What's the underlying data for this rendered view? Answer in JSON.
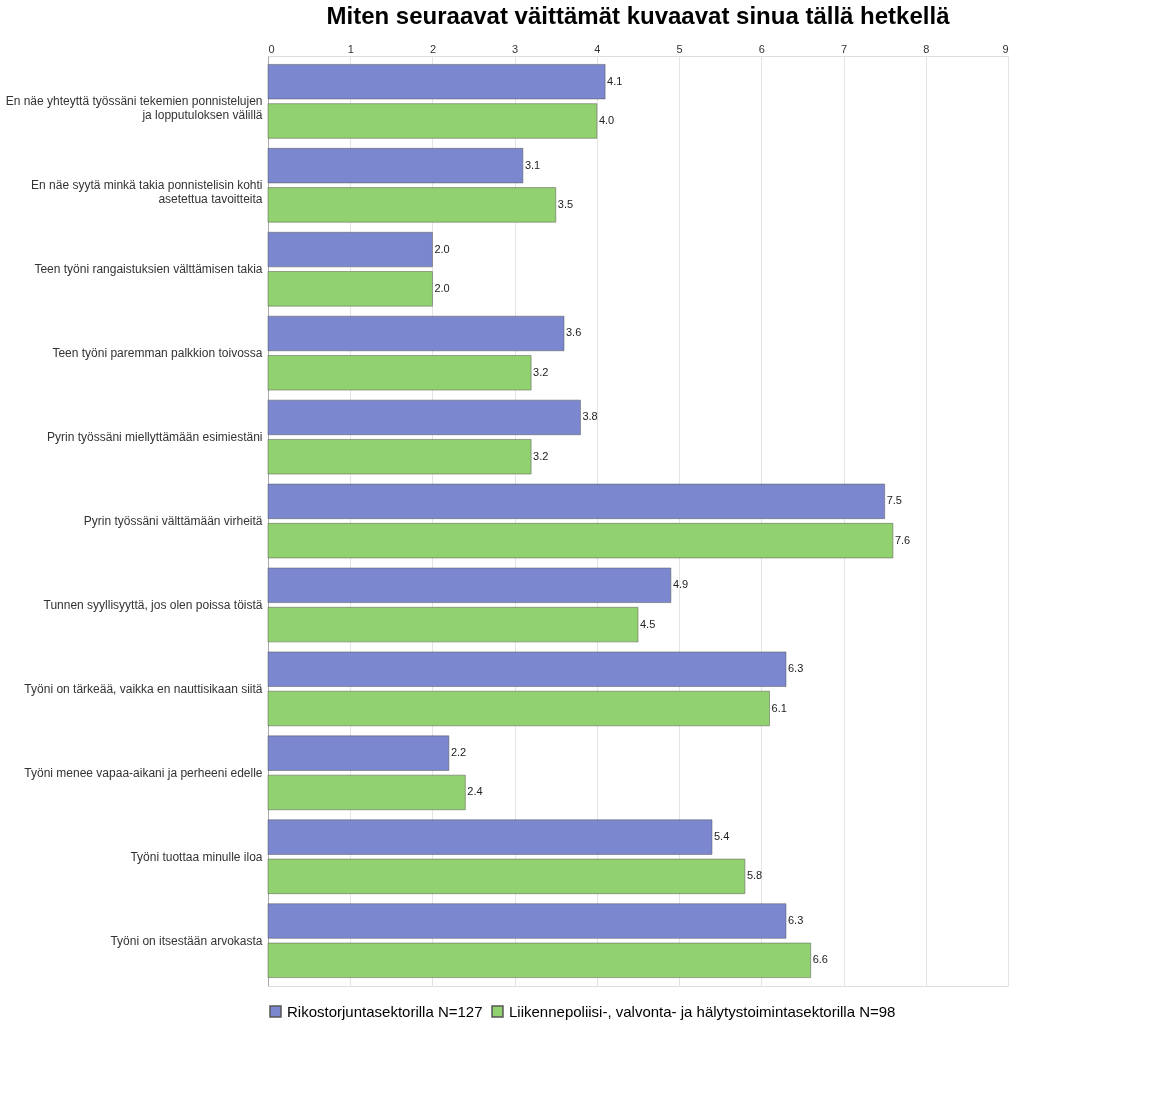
{
  "chart_data": {
    "type": "bar",
    "orientation": "horizontal",
    "title": "Miten seuraavat väittämät kuvaavat sinua tällä hetkellä",
    "categories": [
      "En näe yhteyttä työssäni tekemien ponnistelujen ja lopputuloksen välillä",
      "En näe syytä minkä takia ponnistelisin kohti asetettua tavoitteita",
      "Teen työni rangaistuksien välttämisen takia",
      "Teen työni paremman palkkion toivossa",
      "Pyrin työssäni miellyttämään esimiestäni",
      "Pyrin työssäni välttämään virheitä",
      "Tunnen syyllisyyttä, jos olen poissa töistä",
      "Työni on tärkeää, vaikka en nauttisikaan siitä",
      "Työni menee vapaa-aikani ja perheeni edelle",
      "Työni tuottaa minulle iloa",
      "Työni on itsestään arvokasta"
    ],
    "series": [
      {
        "name": "Rikostorjuntasektorilla N=127",
        "color": "#7b88cf",
        "values": [
          4.1,
          3.1,
          2.0,
          3.6,
          3.8,
          7.5,
          4.9,
          6.3,
          2.2,
          5.4,
          6.3
        ],
        "value_labels": [
          "4.1",
          "3.1",
          "2.0",
          "3.6",
          "3.8",
          "7.5",
          "4.9",
          "6.3",
          "2.2",
          "5.4",
          "6.3"
        ]
      },
      {
        "name": "Liikennepoliisi-, valvonta- ja hälytystoimintasektorilla N=98",
        "color": "#92d16f",
        "values": [
          4.0,
          3.5,
          2.0,
          3.2,
          3.2,
          7.6,
          4.5,
          6.1,
          2.4,
          5.8,
          6.6
        ],
        "value_labels": [
          "4.0",
          "3.5",
          "2.0",
          "3.2",
          "3.2",
          "7.6",
          "4.5",
          "6.1",
          "2.4",
          "5.8",
          "6.6"
        ]
      }
    ],
    "xlim": [
      0,
      9
    ],
    "xticks": [
      0,
      1,
      2,
      3,
      4,
      5,
      6,
      7,
      8,
      9
    ],
    "grid": "x",
    "legend": "bottom"
  }
}
